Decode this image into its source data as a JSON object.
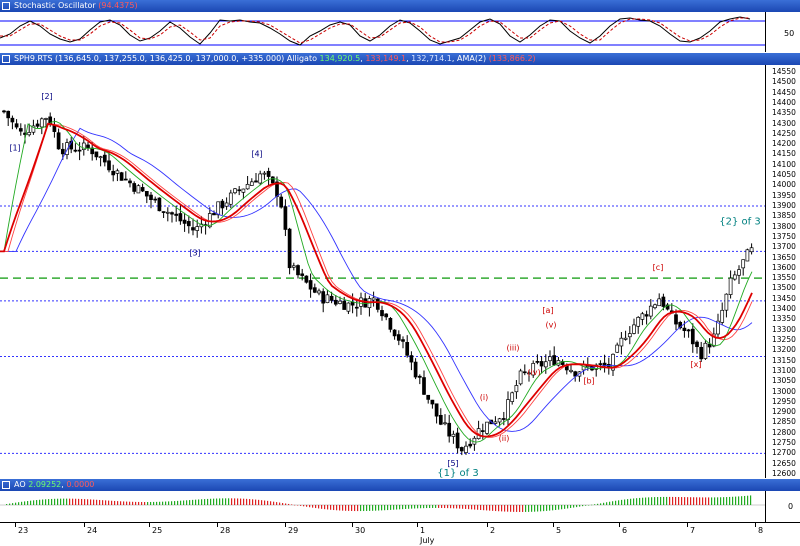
{
  "stoch": {
    "title": "Stochastic Oscillator",
    "value": "(94.4375)",
    "tick_50": "50"
  },
  "main": {
    "symbol": "SPH9.RTS",
    "ohlc": "(136,645.0, 137,255.0, 136,425.0, 137,000.0, +335.000)",
    "alligator_label": "Alligato",
    "alligator_green": "134,920.5",
    "alligator_red": "133,149.1",
    "alligator_blue": "132,714.1",
    "ama_label": "AMA(2)",
    "ama_value": "(133,866.2)",
    "price_ticks": [
      "14550",
      "14500",
      "14450",
      "14400",
      "14350",
      "14300",
      "14250",
      "14200",
      "14150",
      "14100",
      "14050",
      "14000",
      "13950",
      "13900",
      "13850",
      "13800",
      "13750",
      "13700",
      "13650",
      "13600",
      "13550",
      "13500",
      "13450",
      "13400",
      "13350",
      "13300",
      "13250",
      "13200",
      "13150",
      "13100",
      "13050",
      "13000",
      "12950",
      "12900",
      "12850",
      "12800",
      "12750",
      "12700",
      "12650",
      "12600"
    ],
    "wave_labels": {
      "w1": "[1]",
      "w2": "[2]",
      "w3": "[3]",
      "w4": "[4]",
      "w5": "[5]",
      "c1": "{1} of 3",
      "c2": "{2} of 3",
      "i": "(i)",
      "ii": "(ii)",
      "iii": "(iii)",
      "iv": "(iv)",
      "v": "(v)",
      "a": "[a]",
      "b": "[b]",
      "c": "[c]",
      "x": "[x]"
    },
    "colors": {
      "wave_blue": "#000080",
      "wave_red": "#cc0000",
      "wave_teal": "#008080"
    }
  },
  "ao": {
    "title": "AO",
    "value_green": "2.09252",
    "value_red": "0.0000",
    "tick_0": "0"
  },
  "x_axis": {
    "labels": [
      "23",
      "24",
      "25",
      "28",
      "29",
      "30",
      "1",
      "2",
      "5",
      "6",
      "7",
      "8"
    ],
    "month": "July"
  },
  "chart_data": {
    "type": "candlestick",
    "price_range": [
      12600,
      14550
    ],
    "horizontal_levels": [
      13900,
      13680,
      13550,
      13440,
      13170,
      12700
    ],
    "indicators": [
      "Stochastic Oscillator",
      "Alligator",
      "AMA(2)",
      "AO"
    ]
  }
}
